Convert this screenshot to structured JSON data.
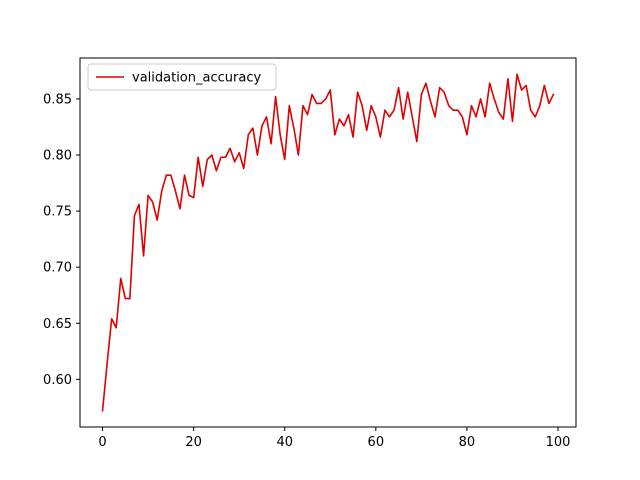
{
  "chart_data": {
    "type": "line",
    "title": "",
    "xlabel": "",
    "ylabel": "",
    "xlim": [
      -4.95,
      103.95
    ],
    "ylim": [
      0.5575,
      0.8865
    ],
    "xticks": [
      0,
      20,
      40,
      60,
      80,
      100
    ],
    "yticks": [
      0.6,
      0.65,
      0.7,
      0.75,
      0.8,
      0.85
    ],
    "grid": false,
    "legend_position": "top-left",
    "series": [
      {
        "name": "validation_accuracy",
        "color": "#e00000",
        "x": [
          0,
          1,
          2,
          3,
          4,
          5,
          6,
          7,
          8,
          9,
          10,
          11,
          12,
          13,
          14,
          15,
          16,
          17,
          18,
          19,
          20,
          21,
          22,
          23,
          24,
          25,
          26,
          27,
          28,
          29,
          30,
          31,
          32,
          33,
          34,
          35,
          36,
          37,
          38,
          39,
          40,
          41,
          42,
          43,
          44,
          45,
          46,
          47,
          48,
          49,
          50,
          51,
          52,
          53,
          54,
          55,
          56,
          57,
          58,
          59,
          60,
          61,
          62,
          63,
          64,
          65,
          66,
          67,
          68,
          69,
          70,
          71,
          72,
          73,
          74,
          75,
          76,
          77,
          78,
          79,
          80,
          81,
          82,
          83,
          84,
          85,
          86,
          87,
          88,
          89,
          90,
          91,
          92,
          93,
          94,
          95,
          96,
          97,
          98,
          99
        ],
        "y": [
          0.572,
          0.614,
          0.654,
          0.646,
          0.69,
          0.672,
          0.672,
          0.746,
          0.756,
          0.71,
          0.764,
          0.758,
          0.742,
          0.768,
          0.782,
          0.782,
          0.768,
          0.752,
          0.782,
          0.764,
          0.762,
          0.798,
          0.772,
          0.796,
          0.8,
          0.786,
          0.798,
          0.798,
          0.806,
          0.794,
          0.802,
          0.788,
          0.818,
          0.824,
          0.8,
          0.826,
          0.834,
          0.81,
          0.852,
          0.818,
          0.796,
          0.844,
          0.824,
          0.8,
          0.844,
          0.836,
          0.854,
          0.846,
          0.846,
          0.85,
          0.858,
          0.818,
          0.832,
          0.826,
          0.836,
          0.816,
          0.856,
          0.844,
          0.822,
          0.844,
          0.834,
          0.816,
          0.84,
          0.834,
          0.84,
          0.86,
          0.832,
          0.856,
          0.834,
          0.812,
          0.854,
          0.864,
          0.848,
          0.834,
          0.86,
          0.856,
          0.844,
          0.84,
          0.84,
          0.834,
          0.818,
          0.844,
          0.834,
          0.85,
          0.834,
          0.864,
          0.85,
          0.838,
          0.832,
          0.868,
          0.83,
          0.872,
          0.858,
          0.862,
          0.84,
          0.834,
          0.844,
          0.862,
          0.846,
          0.854
        ]
      }
    ]
  }
}
